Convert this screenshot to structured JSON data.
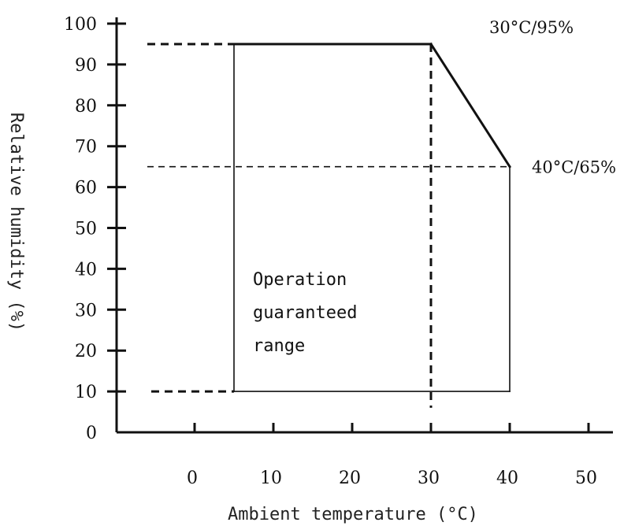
{
  "chart_data": {
    "type": "line",
    "title": "",
    "xlabel": "Ambient temperature (°C)",
    "ylabel": "Relative humidity (%)",
    "xlim": [
      -10,
      53
    ],
    "ylim": [
      0,
      102
    ],
    "x_ticks": [
      0,
      10,
      20,
      30,
      40,
      50
    ],
    "y_ticks": [
      0,
      10,
      20,
      30,
      40,
      50,
      60,
      70,
      80,
      90,
      100
    ],
    "grid": false,
    "legend": "none",
    "series": [
      {
        "style": "solid",
        "points": [
          [
            5,
            10
          ],
          [
            5,
            95
          ],
          [
            30,
            95
          ],
          [
            40,
            65
          ],
          [
            40,
            10
          ],
          [
            5,
            10
          ]
        ]
      }
    ],
    "reference_lines": [
      {
        "style": "dashed-heavy",
        "points": [
          [
            -6,
            95
          ],
          [
            5,
            95
          ]
        ]
      },
      {
        "style": "dashed-heavy",
        "points": [
          [
            -5.5,
            10
          ],
          [
            5,
            10
          ]
        ]
      },
      {
        "style": "dashed-heavy",
        "points": [
          [
            30,
            95
          ],
          [
            30,
            6
          ]
        ]
      },
      {
        "style": "dashed-light",
        "points": [
          [
            -6,
            65
          ],
          [
            40,
            65
          ]
        ]
      }
    ],
    "annotations": [
      {
        "text": "30°C/95%",
        "x": 30,
        "y": 95
      },
      {
        "text": "40°C/65%",
        "x": 40,
        "y": 65
      }
    ],
    "region_label": [
      "Operation",
      "guaranteed",
      "range"
    ],
    "colors": {
      "line": "#111111",
      "axis": "#111111",
      "text": "#111111"
    }
  }
}
